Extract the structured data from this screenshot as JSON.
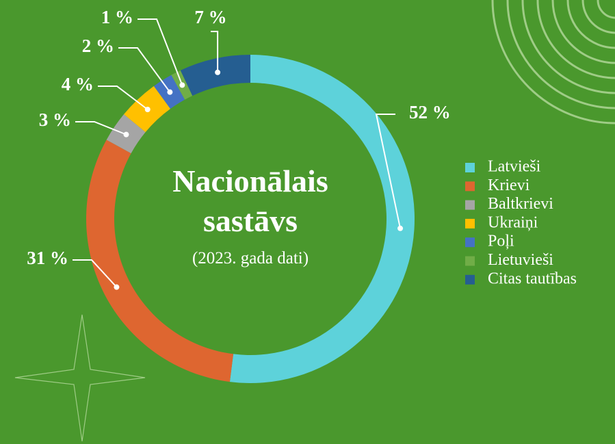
{
  "chart_data": {
    "type": "donut",
    "title": "Nacionālais sastāvs",
    "subtitle": "(2023. gada dati)",
    "categories": [
      "Latvieši",
      "Krievi",
      "Baltkrievi",
      "Ukraiņi",
      "Poļi",
      "Lietuvieši",
      "Citas tautības"
    ],
    "values": [
      52,
      31,
      3,
      4,
      2,
      1,
      7
    ],
    "value_labels": [
      "52 %",
      "31 %",
      "3 %",
      "4 %",
      "2 %",
      "1 %",
      "7 %"
    ],
    "colors": [
      "#5dd2da",
      "#de6630",
      "#a5a5a5",
      "#ffc000",
      "#4472c4",
      "#70ad47",
      "#255e91"
    ]
  }
}
